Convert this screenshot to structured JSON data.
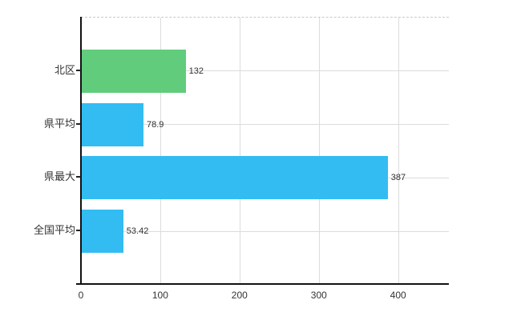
{
  "chart": {
    "background": "#ffffff",
    "axis_color": "#111111",
    "grid_color": "#dcdcdc",
    "h_grid_color": "#d9ddd9",
    "top_border_color": "#c9c9c9",
    "category_label_color": "#333333",
    "value_label_color": "#2f2f2f"
  },
  "chart_data": {
    "type": "bar",
    "orientation": "horizontal",
    "title": "",
    "xlabel": "",
    "ylabel": "",
    "categories": [
      "北区",
      "県平均",
      "県最大",
      "全国平均"
    ],
    "values": [
      132,
      78.9,
      387,
      53.42
    ],
    "value_labels": [
      "132",
      "78.9",
      "387",
      "53.42"
    ],
    "bar_colors": [
      "#60cc7c",
      "#33bcf2",
      "#33bcf2",
      "#33bcf2"
    ],
    "xlim": [
      0,
      464
    ],
    "x_ticks": [
      0,
      100,
      200,
      300,
      400
    ],
    "x_tick_labels": [
      "0",
      "100",
      "200",
      "300",
      "400"
    ],
    "grid": true,
    "legend": false
  }
}
